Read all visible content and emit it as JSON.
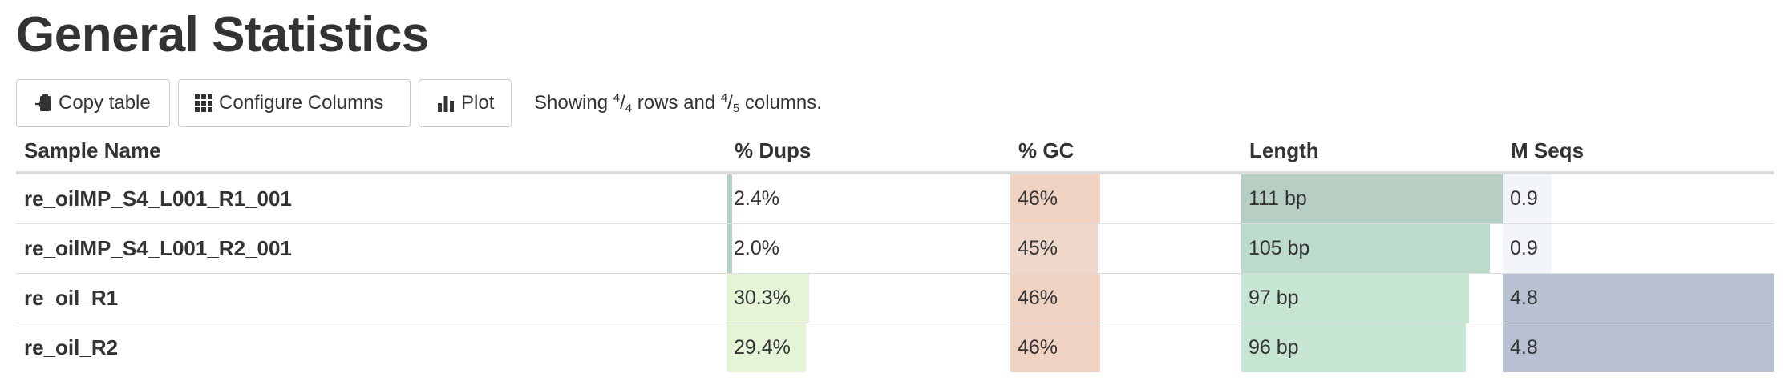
{
  "title": "General Statistics",
  "toolbar": {
    "copy_label": "Copy table",
    "configure_label": "Configure Columns",
    "plot_label": "Plot",
    "showing_prefix": "Showing",
    "rows_shown": "4",
    "rows_total": "4",
    "rows_word": "rows and",
    "cols_shown": "4",
    "cols_total": "5",
    "cols_word": "columns."
  },
  "table": {
    "headers": {
      "sample": "Sample Name",
      "dups": "% Dups",
      "gc": "% GC",
      "length": "Length",
      "mseqs": "M Seqs"
    },
    "rows": [
      {
        "name": "re_oilMP_S4_L001_R1_001",
        "dups": "2.4%",
        "gc": "46%",
        "length": "111 bp",
        "mseqs": "0.9"
      },
      {
        "name": "re_oilMP_S4_L001_R2_001",
        "dups": "2.0%",
        "gc": "45%",
        "length": "105 bp",
        "mseqs": "0.9"
      },
      {
        "name": "re_oil_R1",
        "dups": "30.3%",
        "gc": "46%",
        "length": "97 bp",
        "mseqs": "4.8"
      },
      {
        "name": "re_oil_R2",
        "dups": "29.4%",
        "gc": "46%",
        "length": "96 bp",
        "mseqs": "4.8"
      }
    ]
  },
  "bar_levels": {
    "dups": [
      0.02,
      0.02,
      0.29,
      0.28
    ],
    "gc": [
      0.39,
      0.38,
      0.39,
      0.39
    ],
    "length": [
      1.0,
      0.95,
      0.87,
      0.86
    ],
    "mseqs": [
      0.18,
      0.18,
      1.0,
      1.0
    ]
  },
  "bar_colors": {
    "dups": [
      "#b5d1c4",
      "#b5d1c4",
      "#e5f3d6",
      "#e5f3d6"
    ],
    "gc": [
      "#f0d2c3",
      "#f0d7cb",
      "#f0d2c3",
      "#f0d2c3"
    ],
    "length": [
      "#b6cfc2",
      "#bcdbcb",
      "#c6e5d3",
      "#c6e5d3"
    ],
    "mseqs": [
      "#f2f5fa",
      "#f2f5fa",
      "#b8c1d2",
      "#b8c1d2"
    ]
  },
  "icons": {
    "copy": "clipboard-icon",
    "configure": "grid-icon",
    "plot": "bar-chart-icon"
  }
}
